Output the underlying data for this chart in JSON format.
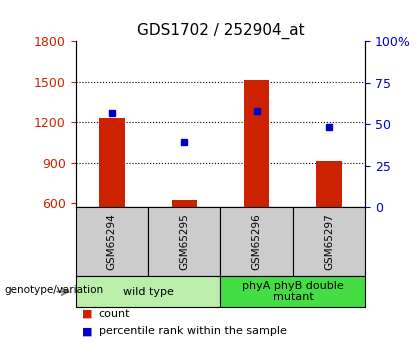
{
  "title": "GDS1702 / 252904_at",
  "samples": [
    "GSM65294",
    "GSM65295",
    "GSM65296",
    "GSM65297"
  ],
  "bar_values": [
    1230,
    625,
    1510,
    910
  ],
  "bar_color": "#cc2200",
  "dot_values": [
    1270,
    1050,
    1285,
    1165
  ],
  "dot_color": "#0000cc",
  "ylim_left": [
    570,
    1800
  ],
  "ylim_right": [
    0,
    100
  ],
  "yticks_left": [
    600,
    900,
    1200,
    1500,
    1800
  ],
  "yticks_right": [
    0,
    25,
    50,
    75,
    100
  ],
  "ytick_right_labels": [
    "0",
    "25",
    "50",
    "75",
    "100%"
  ],
  "groups": [
    {
      "label": "wild type",
      "samples": [
        0,
        1
      ],
      "color": "#bbeeaa"
    },
    {
      "label": "phyA phyB double\nmutant",
      "samples": [
        2,
        3
      ],
      "color": "#44dd44"
    }
  ],
  "legend_items": [
    {
      "label": "count",
      "color": "#cc2200"
    },
    {
      "label": "percentile rank within the sample",
      "color": "#0000cc"
    }
  ],
  "genotype_label": "genotype/variation",
  "bar_bottom": 570,
  "sample_box_color": "#cccccc",
  "gridlines": [
    900,
    1200,
    1500
  ]
}
